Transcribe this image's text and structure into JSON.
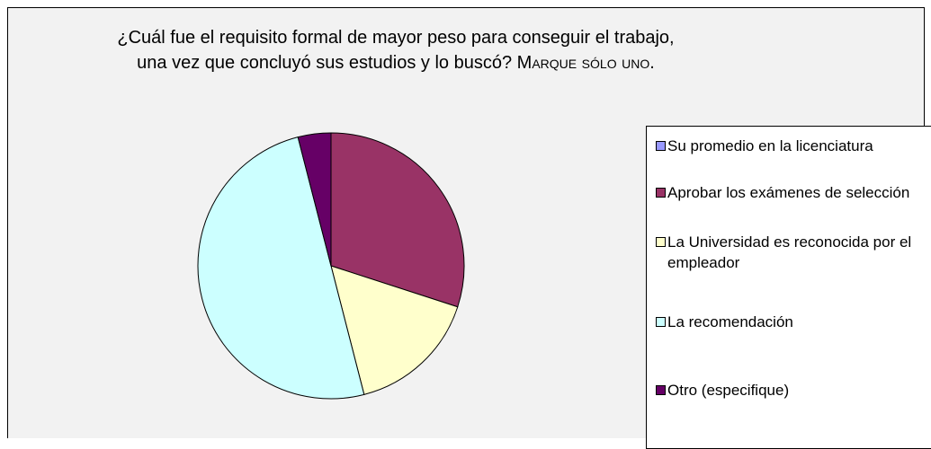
{
  "chart_data": {
    "type": "pie",
    "title": "¿Cuál fue el requisito formal de mayor peso para conseguir el trabajo, una vez que concluyó sus estudios y lo buscó?",
    "title_suffix": "Marque sólo uno.",
    "categories": [
      "Su promedio en la licenciatura",
      "Aprobar los exámenes de selección",
      "La Universidad es reconocida por el empleador",
      "La recomendación",
      "Otro (especifique)"
    ],
    "values": [
      0,
      30,
      16,
      50,
      4
    ],
    "colors": [
      "#9999ff",
      "#993366",
      "#ffffcc",
      "#ccffff",
      "#660066"
    ],
    "legend": "right"
  }
}
